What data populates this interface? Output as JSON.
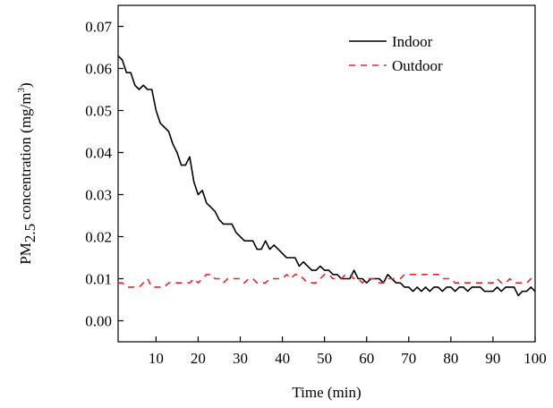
{
  "chart_data": {
    "type": "line",
    "title": "",
    "xlabel": "Time (min)",
    "ylabel": {
      "prefix": "PM",
      "subscript": "2.5",
      "middle": " concentration (mg/m",
      "superscript": "3",
      "suffix": ")"
    },
    "xlim": [
      1,
      100
    ],
    "ylim": [
      -0.005,
      0.075
    ],
    "xticks": [
      10,
      20,
      30,
      40,
      50,
      60,
      70,
      80,
      90,
      100
    ],
    "yticks": [
      0.0,
      0.01,
      0.02,
      0.03,
      0.04,
      0.05,
      0.06,
      0.07
    ],
    "xtick_labels": [
      "10",
      "20",
      "30",
      "40",
      "50",
      "60",
      "70",
      "80",
      "90",
      "100"
    ],
    "ytick_labels": [
      "0.00",
      "0.01",
      "0.02",
      "0.03",
      "0.04",
      "0.05",
      "0.06",
      "0.07"
    ],
    "grid": false,
    "legend_position": "top-right",
    "series": [
      {
        "name": "Indoor",
        "color": "#000000",
        "dash": "solid",
        "x": [
          1,
          2,
          3,
          4,
          5,
          6,
          7,
          8,
          9,
          10,
          11,
          12,
          13,
          14,
          15,
          16,
          17,
          18,
          19,
          20,
          21,
          22,
          23,
          24,
          25,
          26,
          27,
          28,
          29,
          30,
          31,
          32,
          33,
          34,
          35,
          36,
          37,
          38,
          39,
          40,
          41,
          42,
          43,
          44,
          45,
          46,
          47,
          48,
          49,
          50,
          51,
          52,
          53,
          54,
          55,
          56,
          57,
          58,
          59,
          60,
          61,
          62,
          63,
          64,
          65,
          66,
          67,
          68,
          69,
          70,
          71,
          72,
          73,
          74,
          75,
          76,
          77,
          78,
          79,
          80,
          81,
          82,
          83,
          84,
          85,
          86,
          87,
          88,
          89,
          90,
          91,
          92,
          93,
          94,
          95,
          96,
          97,
          98,
          99,
          100
        ],
        "values": [
          0.063,
          0.062,
          0.059,
          0.059,
          0.056,
          0.055,
          0.056,
          0.055,
          0.055,
          0.05,
          0.047,
          0.046,
          0.045,
          0.042,
          0.04,
          0.037,
          0.037,
          0.039,
          0.033,
          0.03,
          0.031,
          0.028,
          0.027,
          0.026,
          0.024,
          0.023,
          0.023,
          0.023,
          0.021,
          0.02,
          0.019,
          0.019,
          0.019,
          0.017,
          0.017,
          0.019,
          0.017,
          0.018,
          0.017,
          0.016,
          0.015,
          0.015,
          0.015,
          0.013,
          0.014,
          0.013,
          0.012,
          0.012,
          0.013,
          0.012,
          0.012,
          0.011,
          0.011,
          0.01,
          0.01,
          0.01,
          0.012,
          0.01,
          0.01,
          0.009,
          0.01,
          0.01,
          0.01,
          0.009,
          0.011,
          0.01,
          0.009,
          0.009,
          0.008,
          0.008,
          0.007,
          0.008,
          0.007,
          0.008,
          0.007,
          0.008,
          0.008,
          0.007,
          0.008,
          0.008,
          0.007,
          0.008,
          0.008,
          0.007,
          0.008,
          0.008,
          0.008,
          0.007,
          0.007,
          0.007,
          0.008,
          0.007,
          0.008,
          0.008,
          0.008,
          0.006,
          0.007,
          0.007,
          0.008,
          0.007
        ]
      },
      {
        "name": "Outdoor",
        "color": "#e8242a",
        "dash": "dashed",
        "x": [
          1,
          2,
          3,
          4,
          5,
          6,
          7,
          8,
          9,
          10,
          11,
          12,
          13,
          14,
          15,
          16,
          17,
          18,
          19,
          20,
          21,
          22,
          23,
          24,
          25,
          26,
          27,
          28,
          29,
          30,
          31,
          32,
          33,
          34,
          35,
          36,
          37,
          38,
          39,
          40,
          41,
          42,
          43,
          44,
          45,
          46,
          47,
          48,
          49,
          50,
          51,
          52,
          53,
          54,
          55,
          56,
          57,
          58,
          59,
          60,
          61,
          62,
          63,
          64,
          65,
          66,
          67,
          68,
          69,
          70,
          71,
          72,
          73,
          74,
          75,
          76,
          77,
          78,
          79,
          80,
          81,
          82,
          83,
          84,
          85,
          86,
          87,
          88,
          89,
          90,
          91,
          92,
          93,
          94,
          95,
          96,
          97,
          98,
          99,
          100
        ],
        "values": [
          0.009,
          0.009,
          0.008,
          0.008,
          0.008,
          0.008,
          0.009,
          0.01,
          0.008,
          0.008,
          0.008,
          0.008,
          0.009,
          0.009,
          0.009,
          0.009,
          0.009,
          0.009,
          0.01,
          0.009,
          0.01,
          0.011,
          0.011,
          0.01,
          0.01,
          0.009,
          0.01,
          0.01,
          0.01,
          0.01,
          0.009,
          0.01,
          0.01,
          0.009,
          0.009,
          0.009,
          0.01,
          0.01,
          0.01,
          0.01,
          0.011,
          0.01,
          0.011,
          0.011,
          0.01,
          0.009,
          0.009,
          0.009,
          0.01,
          0.011,
          0.011,
          0.01,
          0.01,
          0.01,
          0.011,
          0.011,
          0.01,
          0.01,
          0.009,
          0.01,
          0.01,
          0.01,
          0.009,
          0.009,
          0.01,
          0.01,
          0.01,
          0.01,
          0.011,
          0.011,
          0.011,
          0.011,
          0.011,
          0.011,
          0.011,
          0.011,
          0.011,
          0.01,
          0.01,
          0.01,
          0.009,
          0.009,
          0.009,
          0.009,
          0.009,
          0.009,
          0.009,
          0.009,
          0.009,
          0.009,
          0.01,
          0.009,
          0.009,
          0.01,
          0.009,
          0.009,
          0.009,
          0.009,
          0.01,
          0.01
        ]
      }
    ]
  }
}
